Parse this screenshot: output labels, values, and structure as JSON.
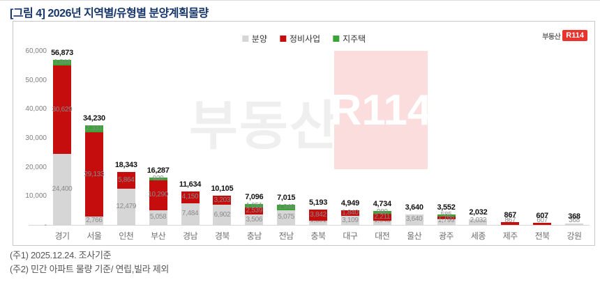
{
  "page": {
    "title": "[그림 4] 2026년 지역별/유형별 분양계획물량",
    "notes": [
      "(주1) 2025.12.24. 조사기준",
      "(주2) 민간 아파트 물량 기준/ 연립,빌라 제외"
    ]
  },
  "brand": {
    "logo_prefix": "부동산",
    "logo_box": "R114",
    "watermark_prefix": "부동산",
    "watermark_box": "R114"
  },
  "chart_data": {
    "type": "bar",
    "stacked": true,
    "title": "2026년 지역별/유형별 분양계획물량",
    "categories": [
      "경기",
      "서울",
      "인천",
      "부산",
      "경남",
      "경북",
      "충남",
      "전남",
      "충북",
      "대구",
      "대전",
      "울산",
      "광주",
      "세종",
      "제주",
      "전북",
      "강원"
    ],
    "series": [
      {
        "name": "분양",
        "color": "#d6d6d6",
        "values": [
          24400,
          2766,
          12479,
          5058,
          7484,
          6902,
          3506,
          5075,
          1351,
          3109,
          1543,
          3640,
          1799,
          2032,
          0,
          0,
          368
        ]
      },
      {
        "name": "정비사업",
        "color": "#c60d0d",
        "values": [
          30629,
          29133,
          5864,
          10290,
          4150,
          3203,
          2539,
          0,
          3842,
          1840,
          2211,
          0,
          1168,
          0,
          867,
          607,
          0
        ]
      },
      {
        "name": "지주택",
        "color": "#3aa437",
        "values": [
          1844,
          2331,
          0,
          939,
          0,
          0,
          1051,
          1940,
          0,
          0,
          980,
          0,
          585,
          0,
          0,
          0,
          0
        ]
      }
    ],
    "totals": [
      56873,
      34230,
      18343,
      16287,
      11634,
      10105,
      7096,
      7015,
      5193,
      4949,
      4734,
      3640,
      3552,
      2032,
      867,
      607,
      368
    ],
    "ylim": [
      0,
      60000
    ],
    "yticks": [
      "60,000",
      "50,000",
      "40,000",
      "30,000",
      "20,000",
      "10,000",
      "-"
    ],
    "grid": false,
    "legend_position": "top"
  }
}
